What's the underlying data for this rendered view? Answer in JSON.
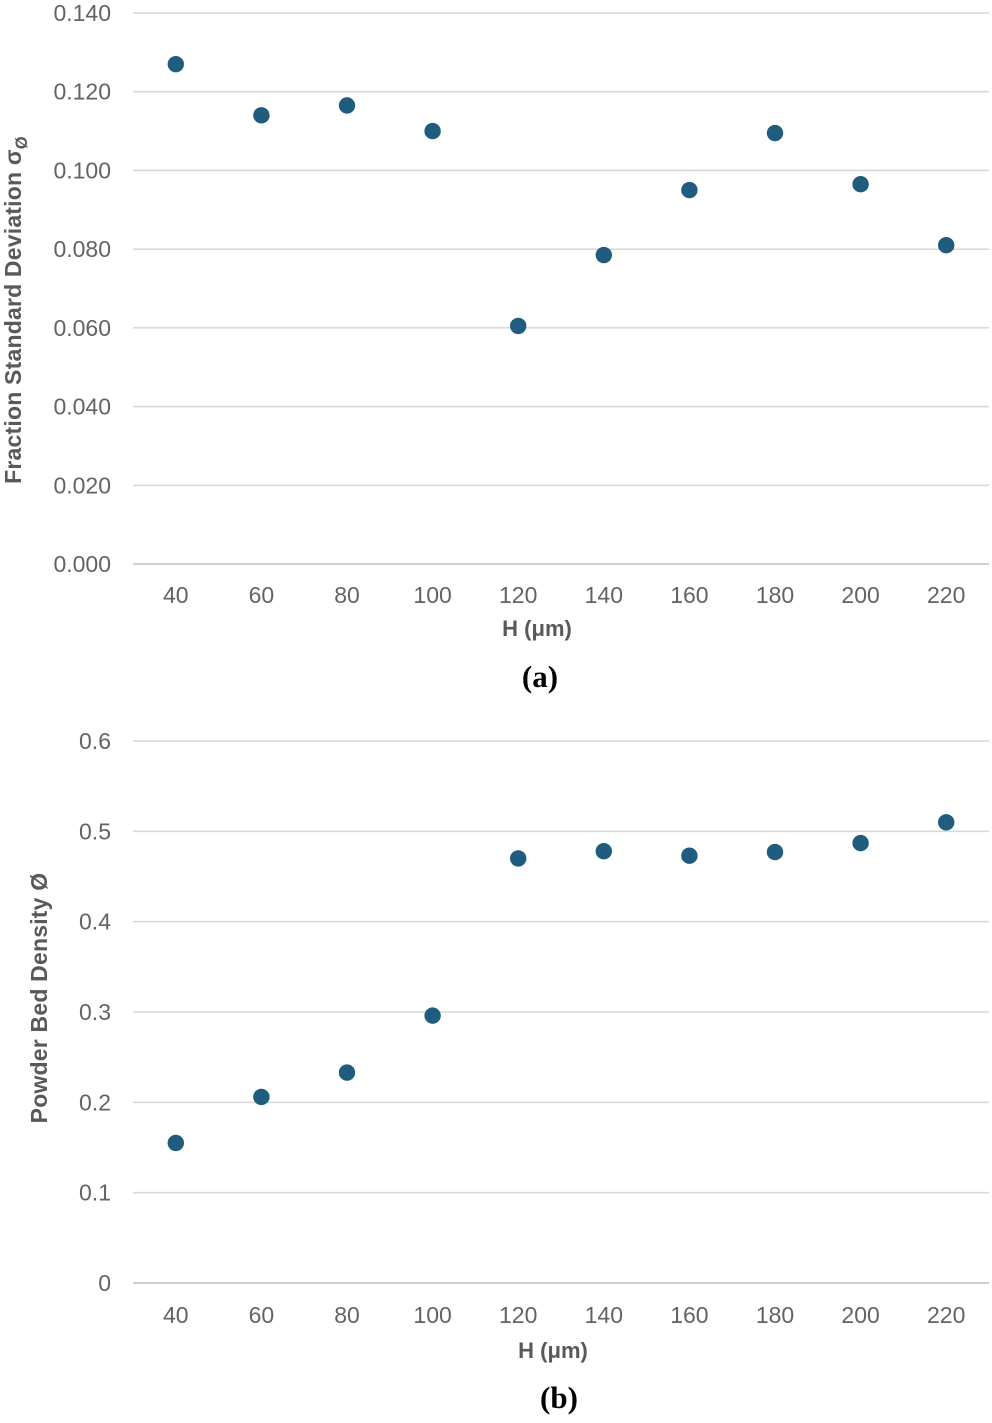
{
  "figure": {
    "background": "#ffffff",
    "panels": [
      {
        "caption": "(a)",
        "y_axis_title_main": "Fraction Standard Deviation σ",
        "y_axis_title_sub": "Ø",
        "x_axis_title": "H (μm)"
      },
      {
        "caption": "(b)",
        "y_axis_title_main": "Powder Bed Density Ø",
        "y_axis_title_sub": "",
        "x_axis_title": "H (μm)"
      }
    ]
  },
  "chart_data": [
    {
      "type": "scatter",
      "title": "",
      "xlabel": "H (μm)",
      "ylabel": "Fraction Standard Deviation σØ",
      "categories": [
        40,
        60,
        80,
        100,
        120,
        140,
        160,
        180,
        200,
        220
      ],
      "values": [
        0.127,
        0.114,
        0.1165,
        0.11,
        0.0605,
        0.0785,
        0.095,
        0.1095,
        0.0965,
        0.081
      ],
      "ylim": [
        0,
        0.14
      ],
      "ytick_values": [
        0,
        0.02,
        0.04,
        0.06,
        0.08,
        0.1,
        0.12,
        0.14
      ],
      "ytick_labels": [
        "0.000",
        "0.020",
        "0.040",
        "0.060",
        "0.080",
        "0.100",
        "0.120",
        "0.140"
      ],
      "grid": true,
      "legend": "none",
      "marker_color": "#1f5c7d",
      "grid_color": "#d9d9d9",
      "axis_line_color": "#cfcfcf",
      "tick_label_color": "#636363"
    },
    {
      "type": "scatter",
      "title": "",
      "xlabel": "H (μm)",
      "ylabel": "Powder Bed Density Ø",
      "categories": [
        40,
        60,
        80,
        100,
        120,
        140,
        160,
        180,
        200,
        220
      ],
      "values": [
        0.155,
        0.206,
        0.233,
        0.296,
        0.47,
        0.478,
        0.473,
        0.477,
        0.487,
        0.51
      ],
      "ylim": [
        0,
        0.6
      ],
      "ytick_values": [
        0,
        0.1,
        0.2,
        0.3,
        0.4,
        0.5,
        0.6
      ],
      "ytick_labels": [
        "0",
        "0.1",
        "0.2",
        "0.3",
        "0.4",
        "0.5",
        "0.6"
      ],
      "grid": true,
      "legend": "none",
      "marker_color": "#1f5c7d",
      "grid_color": "#d9d9d9",
      "axis_line_color": "#cfcfcf",
      "tick_label_color": "#636363"
    }
  ]
}
